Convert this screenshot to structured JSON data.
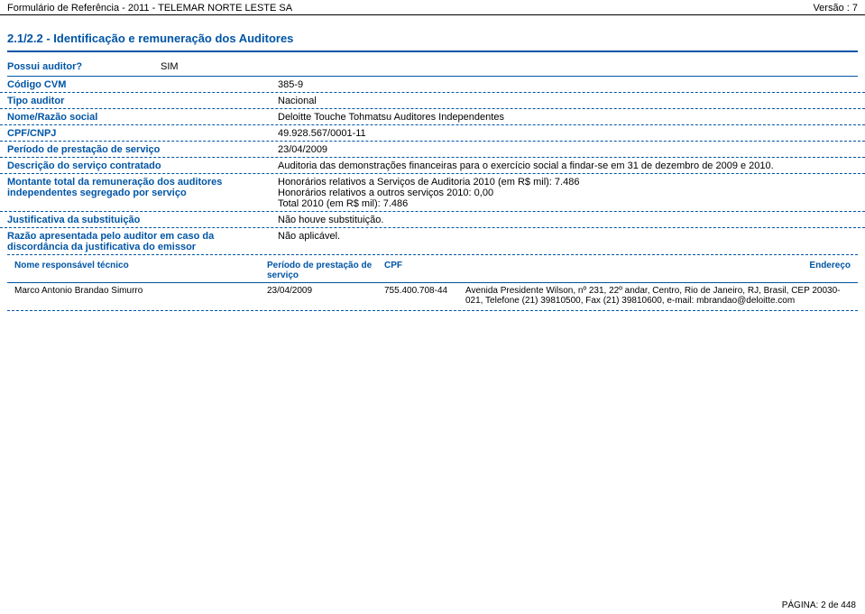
{
  "header": {
    "left": "Formulário de Referência - 2011 - TELEMAR NORTE LESTE SA",
    "right": "Versão : 7"
  },
  "section_title": "2.1/2.2 - Identificação e remuneração dos Auditores",
  "possui": {
    "label": "Possui auditor?",
    "value": "SIM"
  },
  "rows": [
    {
      "label": "Código CVM",
      "value": "385-9"
    },
    {
      "label": "Tipo auditor",
      "value": "Nacional"
    },
    {
      "label": "Nome/Razão social",
      "value": "Deloitte Touche Tohmatsu Auditores Independentes"
    },
    {
      "label": "CPF/CNPJ",
      "value": "49.928.567/0001-11"
    },
    {
      "label": "Período de prestação de serviço",
      "value": "23/04/2009"
    },
    {
      "label": "Descrição do serviço contratado",
      "value": "Auditoria das demonstrações financeiras para o exercício social a findar-se em 31 de dezembro de 2009 e 2010."
    },
    {
      "label": "Montante total da remuneração dos auditores independentes segregado por serviço",
      "value": "Honorários relativos a Serviços de Auditoria 2010 (em R$ mil): 7.486\nHonorários relativos a outros serviços 2010: 0,00\nTotal 2010 (em R$ mil): 7.486"
    },
    {
      "label": "Justificativa da substituição",
      "value": "Não houve substituição."
    },
    {
      "label": "Razão apresentada pelo auditor em caso da discordância da justificativa do emissor",
      "value": "Não aplicável."
    }
  ],
  "tech": {
    "headers": {
      "name": "Nome responsável técnico",
      "period": "Período de prestação de serviço",
      "cpf": "CPF",
      "addr": "Endereço"
    },
    "row": {
      "name": "Marco Antonio Brandao Simurro",
      "period": "23/04/2009",
      "cpf": "755.400.708-44",
      "addr": "Avenida Presidente Wilson, nº 231, 22º andar, Centro, Rio de Janeiro, RJ, Brasil, CEP 20030-021, Telefone (21) 39810500, Fax (21) 39810600, e-mail: mbrandao@deloitte.com"
    }
  },
  "footer": "PÁGINA: 2 de 448"
}
